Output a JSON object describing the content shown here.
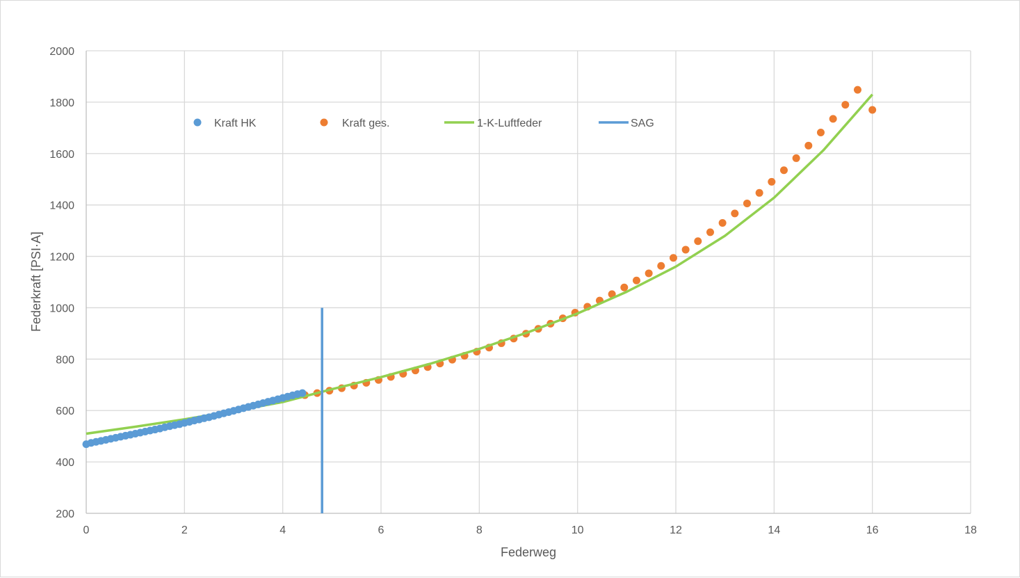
{
  "chart_data": {
    "type": "scatter",
    "title": "",
    "xlabel": "Federweg",
    "ylabel": "Federkraft [PSI·A]",
    "xlim": [
      0,
      18
    ],
    "ylim": [
      200,
      2000
    ],
    "xticks": [
      0,
      2,
      4,
      6,
      8,
      10,
      12,
      14,
      16,
      18
    ],
    "yticks": [
      200,
      400,
      600,
      800,
      1000,
      1200,
      1400,
      1600,
      1800,
      2000
    ],
    "grid": true,
    "legend_position": "top",
    "legend": [
      "Kraft HK",
      "Kraft ges.",
      "1-K-Luftfeder",
      "SAG"
    ],
    "colors": {
      "kraft_hk": "#5b9bd5",
      "kraft_ges": "#ed7d31",
      "luftfeder": "#92d050",
      "sag": "#5b9bd5",
      "grid": "#d9d9d9",
      "axis": "#bfbfbf"
    },
    "series": [
      {
        "name": "Kraft HK",
        "kind": "markers",
        "x": [
          0,
          0.1,
          0.2,
          0.3,
          0.4,
          0.5,
          0.6,
          0.7,
          0.8,
          0.9,
          1.0,
          1.1,
          1.2,
          1.3,
          1.4,
          1.5,
          1.6,
          1.7,
          1.8,
          1.9,
          2.0,
          2.1,
          2.2,
          2.3,
          2.4,
          2.5,
          2.6,
          2.7,
          2.8,
          2.9,
          3.0,
          3.1,
          3.2,
          3.3,
          3.4,
          3.5,
          3.6,
          3.7,
          3.8,
          3.9,
          4.0,
          4.1,
          4.2,
          4.3,
          4.4
        ],
        "y": [
          469,
          474,
          478,
          482,
          486,
          490,
          494,
          498,
          502,
          506,
          510,
          514,
          518,
          522,
          526,
          530,
          535,
          539,
          543,
          547,
          552,
          556,
          561,
          565,
          570,
          574,
          579,
          584,
          589,
          594,
          599,
          604,
          609,
          614,
          619,
          624,
          629,
          634,
          639,
          644,
          649,
          654,
          659,
          664,
          668
        ]
      },
      {
        "name": "Kraft ges.",
        "kind": "markers",
        "x": [
          4.45,
          4.7,
          4.95,
          5.2,
          5.45,
          5.7,
          5.95,
          6.2,
          6.45,
          6.7,
          6.95,
          7.2,
          7.45,
          7.7,
          7.95,
          8.2,
          8.45,
          8.7,
          8.95,
          9.2,
          9.45,
          9.7,
          9.95,
          10.2,
          10.45,
          10.7,
          10.95,
          11.2,
          11.45,
          11.7,
          11.95,
          12.2,
          12.45,
          12.7,
          12.95,
          13.2,
          13.45,
          13.7,
          13.95,
          14.2,
          14.45,
          14.7,
          14.95,
          15.2,
          15.45,
          15.7,
          16.0
        ],
        "y": [
          660,
          668,
          677,
          687,
          697,
          708,
          719,
          731,
          743,
          756,
          769,
          783,
          798,
          813,
          829,
          845,
          862,
          880,
          899,
          918,
          938,
          959,
          981,
          1004,
          1028,
          1053,
          1079,
          1106,
          1134,
          1163,
          1194,
          1226,
          1259,
          1294,
          1330,
          1367,
          1406,
          1447,
          1490,
          1535,
          1582,
          1631,
          1682,
          1735,
          1790,
          1848,
          1770
        ]
      },
      {
        "name": "1-K-Luftfeder",
        "kind": "line",
        "x": [
          0,
          1,
          2,
          3,
          4,
          5,
          6,
          7,
          8,
          9,
          10,
          11,
          12,
          13,
          14,
          15,
          16
        ],
        "y": [
          510,
          537,
          566,
          598,
          633,
          683,
          730,
          782,
          840,
          905,
          978,
          1062,
          1160,
          1280,
          1428,
          1612,
          1830
        ]
      },
      {
        "name": "SAG",
        "kind": "vline",
        "x": [
          4.8,
          4.8
        ],
        "y": [
          200,
          1000
        ]
      }
    ]
  }
}
